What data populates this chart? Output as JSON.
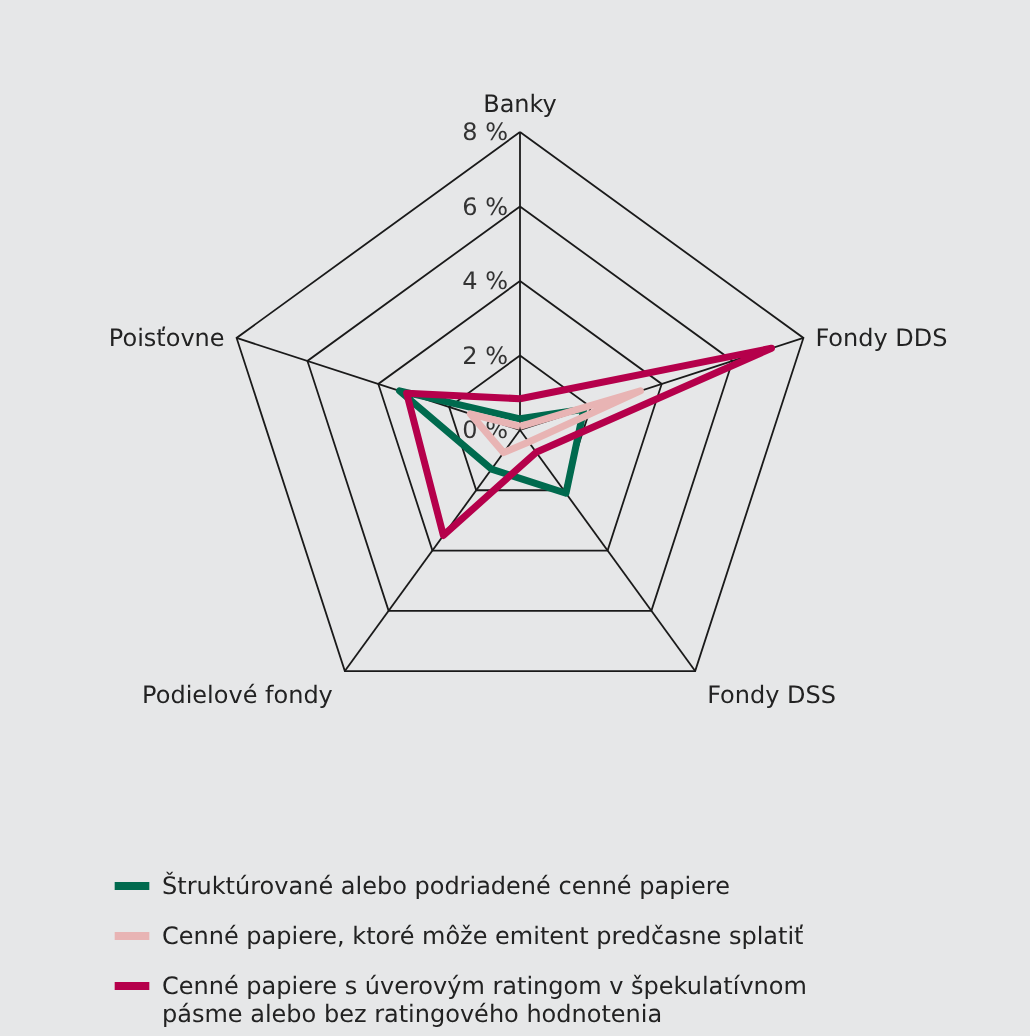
{
  "chart_data": {
    "type": "radar",
    "categories": [
      "Banky",
      "Fondy DDS",
      "Fondy DSS",
      "Podielové fondy",
      "Poisťovne"
    ],
    "series": [
      {
        "name": "Štruktúrované alebo podriadené cenné papiere",
        "color": "#006a4e",
        "values": [
          0.3,
          1.8,
          2.1,
          1.3,
          3.4
        ]
      },
      {
        "name": "Cenné papiere, ktoré môže emitent predčasne splatiť",
        "color": "#e8b4b4",
        "values": [
          0.1,
          3.4,
          0.4,
          0.75,
          1.4
        ]
      },
      {
        "name": "Cenné papiere s úverovým ratingom v špekulatívnom pásme alebo bez ratingového hodnotenia",
        "color": "#b5004b",
        "values": [
          0.84,
          7.1,
          0.74,
          3.5,
          3.2
        ]
      }
    ],
    "ylim": [
      0,
      8
    ],
    "yticks": [
      {
        "value": 0,
        "label": "0 %"
      },
      {
        "value": 2,
        "label": "2 %"
      },
      {
        "value": 4,
        "label": "4 %"
      },
      {
        "value": 6,
        "label": "6 %"
      },
      {
        "value": 8,
        "label": "8 %"
      }
    ],
    "grid": true,
    "legend": "bottom left"
  }
}
